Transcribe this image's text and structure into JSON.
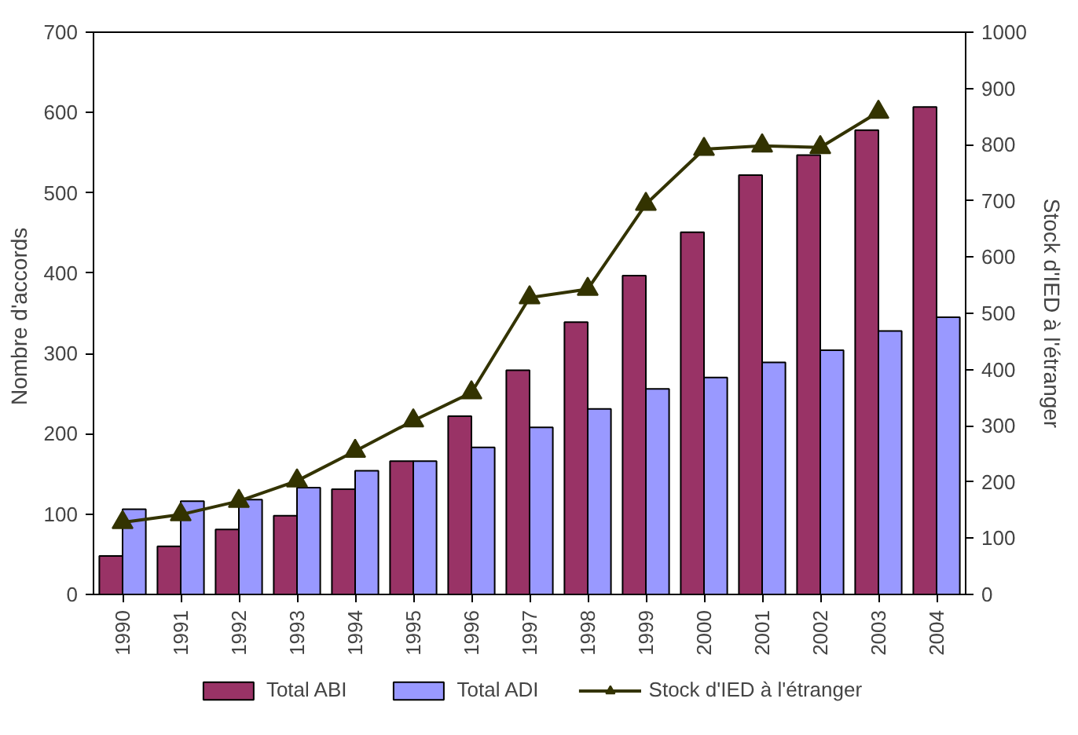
{
  "chart_data": {
    "type": "bar",
    "ylabel": "Nombre  d'accords",
    "y2label": "Stock d'IED à l'étranger",
    "categories": [
      "1990",
      "1991",
      "1992",
      "1993",
      "1994",
      "1995",
      "1996",
      "1997",
      "1998",
      "1999",
      "2000",
      "2001",
      "2002",
      "2003",
      "2004"
    ],
    "series": [
      {
        "name": "Total ABI",
        "color": "#993366",
        "values": [
          48,
          60,
          81,
          98,
          131,
          166,
          222,
          279,
          339,
          397,
          451,
          522,
          547,
          578,
          607
        ]
      },
      {
        "name": "Total ADI",
        "color": "#9999ff",
        "values": [
          106,
          116,
          118,
          133,
          154,
          166,
          183,
          208,
          231,
          256,
          270,
          289,
          304,
          328,
          345
        ]
      },
      {
        "name": "Stock d'IED à l'étranger",
        "type": "line",
        "axis": "y2",
        "color": "#333300",
        "marker": "triangle",
        "values": [
          128,
          142,
          166,
          202,
          255,
          309,
          359,
          528,
          543,
          694,
          792,
          798,
          795,
          858,
          null
        ]
      }
    ],
    "ylim": [
      0,
      700
    ],
    "yticks": [
      0,
      100,
      200,
      300,
      400,
      500,
      600,
      700
    ],
    "y2lim": [
      0,
      1000
    ],
    "y2ticks": [
      0,
      100,
      200,
      300,
      400,
      500,
      600,
      700,
      800,
      900,
      1000
    ],
    "grid": false,
    "legend": "bottom"
  }
}
